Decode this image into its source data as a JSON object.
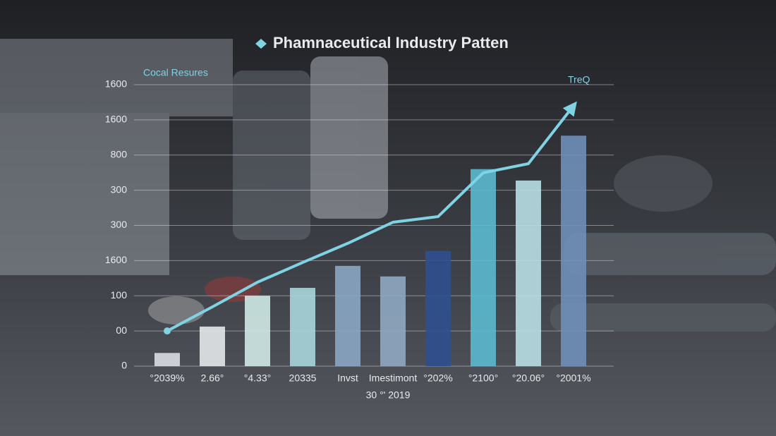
{
  "chart_data": {
    "type": "bar",
    "title": "Phamnaceutical Industry Patten",
    "annotations": [
      "Cocal Resures",
      "TreQ"
    ],
    "x_label": "30 °' 2019",
    "categories": [
      "°2039%",
      "2.66°",
      "°4.33°",
      "20335",
      "Invst",
      "Imestimont",
      "°202%",
      "°2100°",
      "°20.06°",
      "°2001%"
    ],
    "values": [
      75,
      225,
      400,
      445,
      570,
      510,
      655,
      1120,
      1055,
      1310
    ],
    "colors": [
      "#d9dde2",
      "#e4e8ea",
      "#cfe9e6",
      "#a9d6dc",
      "#8aa6c4",
      "#8fa9c2",
      "#2f4f8f",
      "#5bb9cf",
      "#b8dfe6",
      "#6f8fb8"
    ],
    "line": {
      "values": [
        200,
        337,
        477,
        589,
        698,
        818,
        850,
        1099,
        1151,
        1480
      ],
      "color": "#7fd3e3"
    },
    "ylim": [
      0,
      1600
    ],
    "yticks": [
      0,
      {
        "value": 200,
        "label": "00"
      },
      {
        "value": 400,
        "label": "100"
      },
      {
        "value": 600,
        "label": "1600"
      },
      {
        "value": 800,
        "label": "300"
      },
      {
        "value": 1000,
        "label": "300"
      },
      {
        "value": 1200,
        "label": "800"
      },
      {
        "value": 1400,
        "label": "1600"
      },
      {
        "value": 1600,
        "label": "1600"
      }
    ],
    "grid": true
  }
}
